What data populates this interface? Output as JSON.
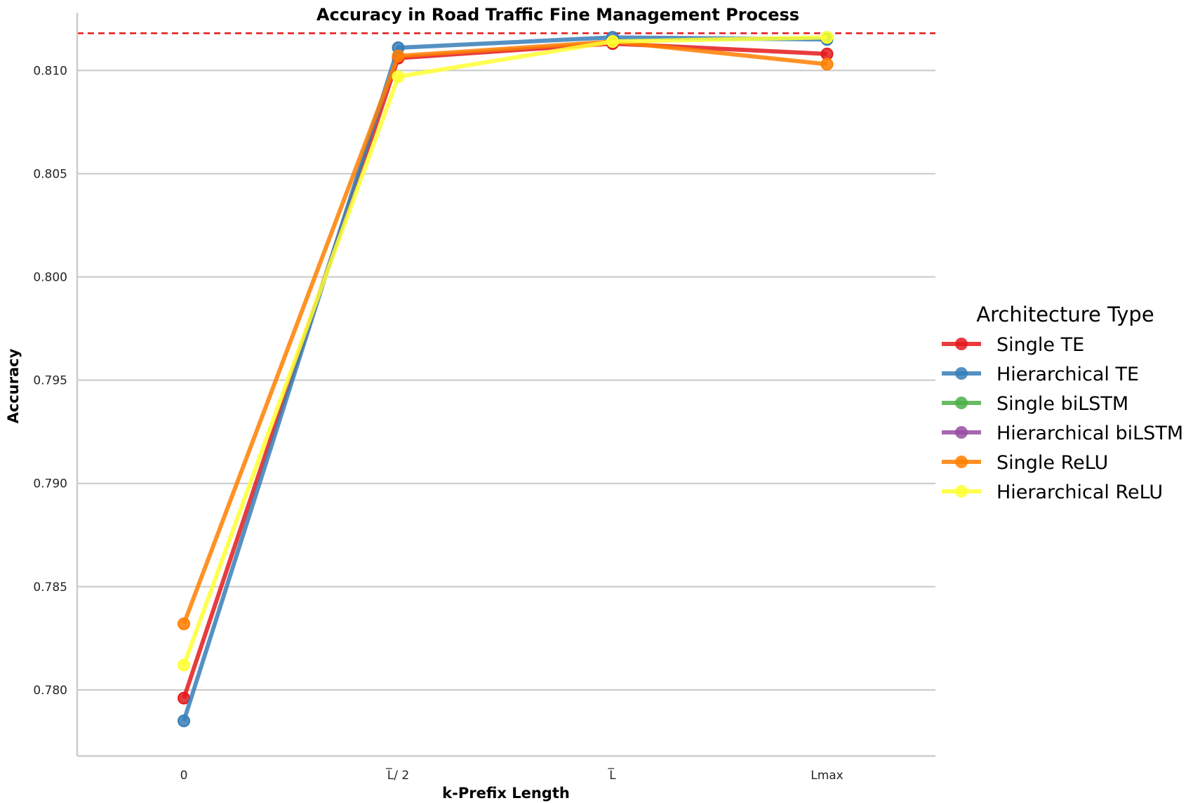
{
  "chart_data": {
    "type": "line",
    "title": "Accuracy in Road Traffic Fine Management Process",
    "xlabel": "k-Prefix Length",
    "ylabel": "Accuracy",
    "categories": [
      "0",
      "L̅/ 2",
      "L̅",
      "Lmax"
    ],
    "ylim": [
      0.7768,
      0.8128
    ],
    "yticks": [
      "0.780",
      "0.785",
      "0.790",
      "0.795",
      "0.800",
      "0.805",
      "0.810"
    ],
    "grid": "horizontal",
    "reference_line": {
      "value": 0.8118,
      "color": "#e41a1c",
      "style": "dashed"
    },
    "legend": {
      "title": "Architecture Type",
      "placement": "right"
    },
    "series": [
      {
        "name": "Single TE",
        "color": "#e41a1c",
        "values": [
          0.7796,
          0.8106,
          0.8113,
          0.8108
        ]
      },
      {
        "name": "Hierarchical TE",
        "color": "#377eb8",
        "values": [
          0.7785,
          0.8111,
          0.8116,
          0.8115
        ]
      },
      {
        "name": "Single biLSTM",
        "color": "#4daf4a",
        "values": [
          null,
          null,
          null,
          0.8116
        ]
      },
      {
        "name": "Hierarchical biLSTM",
        "color": "#984ea3",
        "values": [
          null,
          null,
          null,
          null
        ]
      },
      {
        "name": "Single ReLU",
        "color": "#ff7f00",
        "values": [
          0.7832,
          0.8107,
          0.8114,
          0.8103
        ]
      },
      {
        "name": "Hierarchical ReLU",
        "color": "#ffff33",
        "values": [
          0.7812,
          0.8097,
          0.8114,
          0.8116
        ]
      }
    ]
  }
}
